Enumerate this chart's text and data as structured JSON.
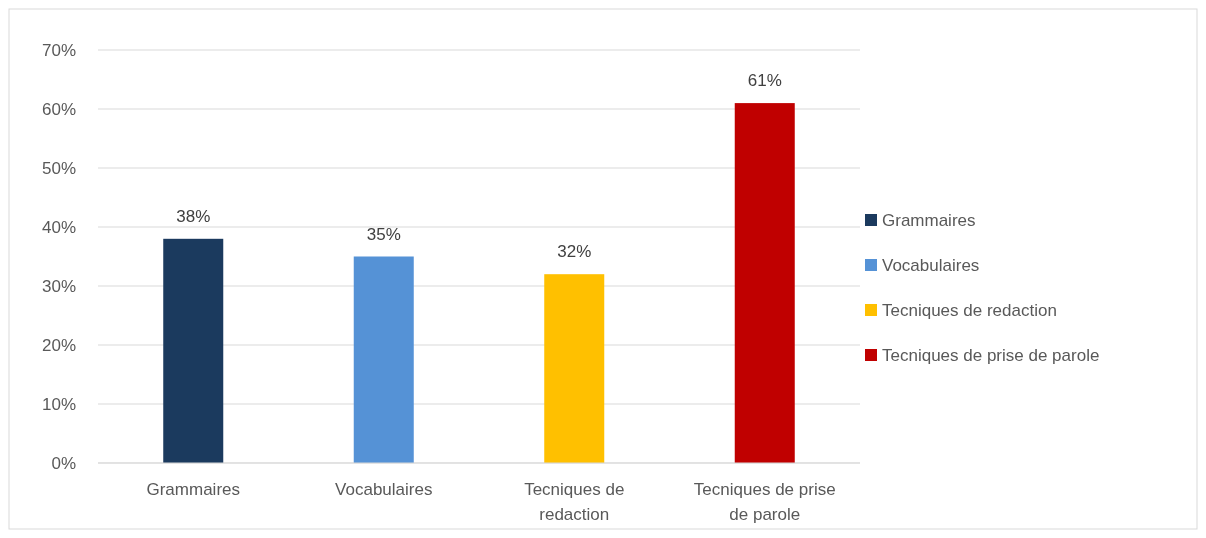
{
  "chart_data": {
    "type": "bar",
    "categories": [
      "Grammaires",
      "Vocabulaires",
      "Tecniques de redaction",
      "Tecniques de prise de parole"
    ],
    "series": [
      {
        "name": "Grammaires",
        "color": "#1b3a5e",
        "values": [
          38,
          null,
          null,
          null
        ],
        "value_labels": [
          "38%",
          null,
          null,
          null
        ]
      },
      {
        "name": "Vocabulaires",
        "color": "#5592d6",
        "values": [
          null,
          35,
          null,
          null
        ],
        "value_labels": [
          null,
          "35%",
          null,
          null
        ]
      },
      {
        "name": "Tecniques de redaction",
        "color": "#ffc000",
        "values": [
          null,
          null,
          32,
          null
        ],
        "value_labels": [
          null,
          null,
          "32%",
          null
        ]
      },
      {
        "name": "Tecniques de prise de parole",
        "color": "#c00000",
        "values": [
          null,
          null,
          null,
          61
        ],
        "value_labels": [
          null,
          null,
          null,
          "61%"
        ]
      }
    ],
    "ylim": [
      0,
      70
    ],
    "yticks": [
      {
        "value": 0,
        "label": "0%"
      },
      {
        "value": 10,
        "label": "10%"
      },
      {
        "value": 20,
        "label": "20%"
      },
      {
        "value": 30,
        "label": "30%"
      },
      {
        "value": 40,
        "label": "40%"
      },
      {
        "value": 50,
        "label": "50%"
      },
      {
        "value": 60,
        "label": "60%"
      },
      {
        "value": 70,
        "label": "70%"
      }
    ],
    "grid": "y",
    "legend": "right"
  }
}
